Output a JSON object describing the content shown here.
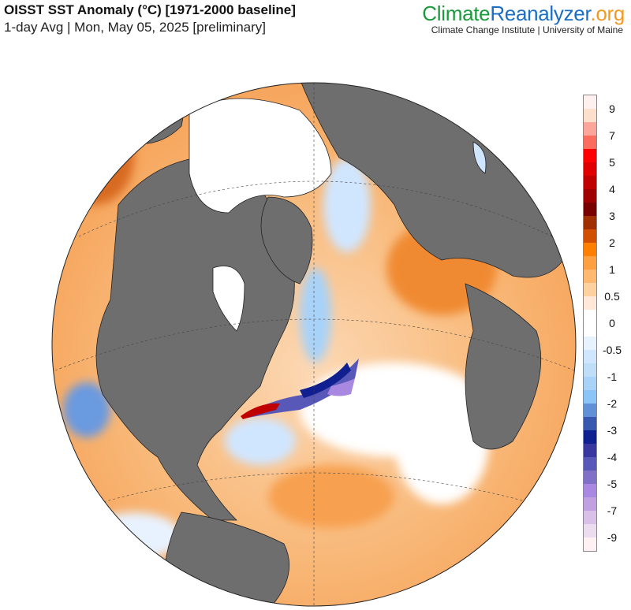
{
  "header": {
    "title": "OISST SST Anomaly (°C) [1971-2000 baseline]",
    "subtitle": "1-day Avg | Mon, May 05, 2025 [preliminary]"
  },
  "logo": {
    "part1": "Climate",
    "part2": "Reanalyzer",
    "part3": ".org",
    "subtitle": "Climate Change Institute | University of Maine"
  },
  "colorbar": {
    "labels": [
      "9",
      "7",
      "5",
      "4",
      "3",
      "2",
      "1",
      "0.5",
      "0",
      "-0.5",
      "-1",
      "-2",
      "-3",
      "-4",
      "-5",
      "-7",
      "-9"
    ],
    "colors": [
      "#fff0f0",
      "#fde0cc",
      "#fca59a",
      "#fb6b5e",
      "#ff0000",
      "#e00000",
      "#c00000",
      "#a00000",
      "#780000",
      "#a03000",
      "#d05000",
      "#ff8000",
      "#ffa040",
      "#ffb870",
      "#ffd0a0",
      "#ffe8d8",
      "#ffffff",
      "#ffffff",
      "#e8f2ff",
      "#d0e6ff",
      "#c0ddf8",
      "#a8d2f8",
      "#8cc4f8",
      "#6090d8",
      "#3858b0",
      "#102090",
      "#3838a0",
      "#5858b8",
      "#8070c8",
      "#a888e0",
      "#c0a0e0",
      "#d8c0e8",
      "#ecdcf0",
      "#fff0f4"
    ]
  },
  "colors": {
    "land": "#6e6e6e",
    "ice": "#ffffff",
    "warm": "#f5a050",
    "cool": "#a8d2f8"
  }
}
